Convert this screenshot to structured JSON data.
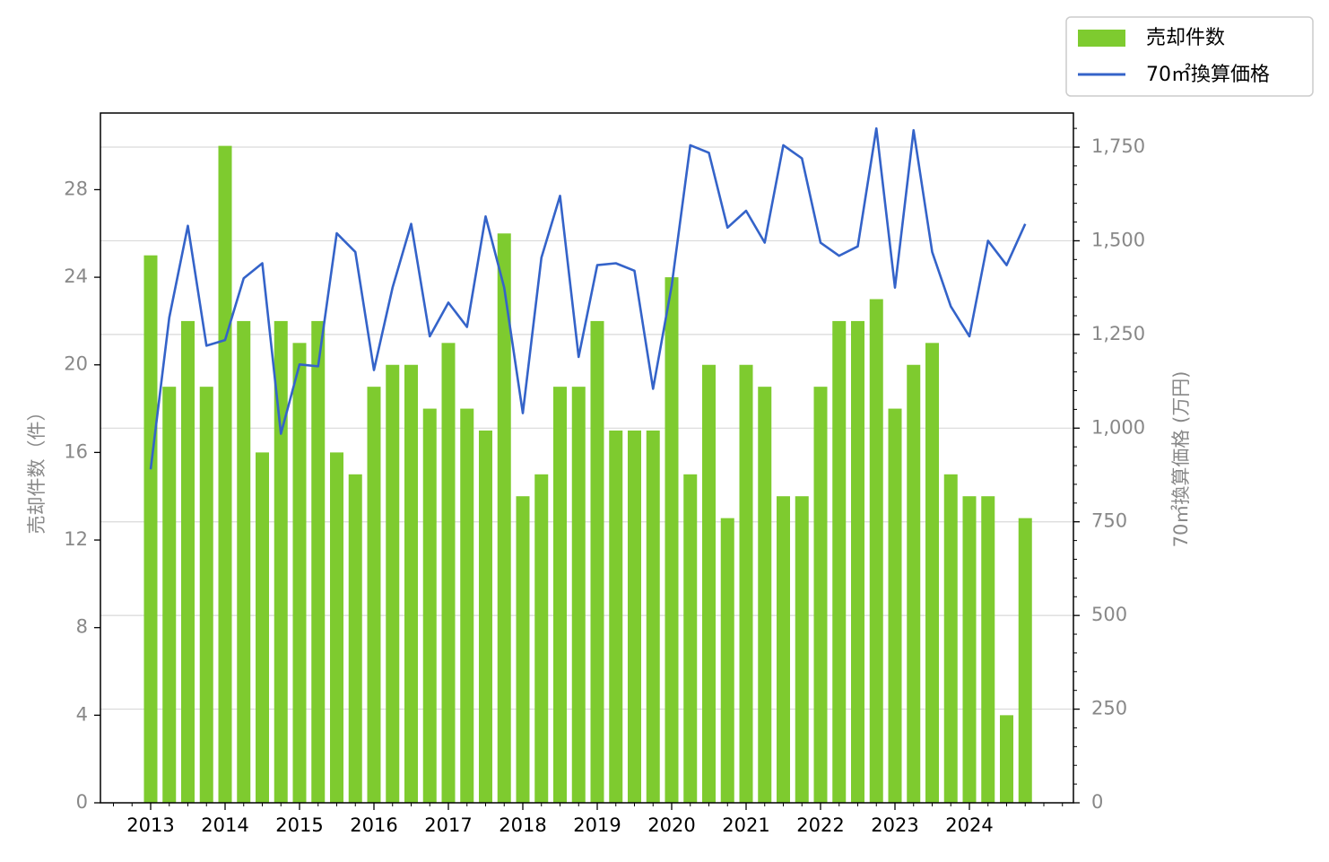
{
  "chart_data": {
    "type": "bar+line",
    "x_tick_labels": [
      "2013",
      "2014",
      "2015",
      "2016",
      "2017",
      "2018",
      "2019",
      "2020",
      "2021",
      "2022",
      "2023",
      "2024"
    ],
    "ylabel_left": "売却件数（件）",
    "ylabel_right": "70㎡換算価格 (万円)",
    "ylim_left": [
      0,
      31.5
    ],
    "ylim_right": [
      0,
      1841
    ],
    "yticks_left": [
      0,
      4,
      8,
      12,
      16,
      20,
      24,
      28
    ],
    "yticks_right": [
      0,
      250,
      500,
      750,
      1000,
      1250,
      1500,
      1750
    ],
    "yticks_right_labels": [
      "0",
      "250",
      "500",
      "750",
      "1,000",
      "1,250",
      "1,500",
      "1,750"
    ],
    "grid": "horizontal (right axis)",
    "legend_position": "top-right",
    "series": [
      {
        "name": "売却件数",
        "type": "bar",
        "axis": "left",
        "color": "#7ecb2f",
        "values": [
          25,
          19,
          22,
          19,
          30,
          22,
          16,
          22,
          21,
          22,
          16,
          15,
          19,
          20,
          20,
          18,
          21,
          18,
          17,
          26,
          14,
          15,
          19,
          19,
          22,
          17,
          17,
          17,
          24,
          15,
          20,
          13,
          20,
          19,
          14,
          14,
          19,
          22,
          22,
          23,
          18,
          20,
          21,
          15,
          14,
          14,
          4,
          13
        ]
      },
      {
        "name": "70㎡換算価格",
        "type": "line",
        "axis": "right",
        "color": "#3463c9",
        "values": [
          890,
          1295,
          1540,
          1220,
          1235,
          1400,
          1440,
          985,
          1170,
          1165,
          1520,
          1470,
          1155,
          1375,
          1545,
          1245,
          1335,
          1270,
          1565,
          1375,
          1040,
          1455,
          1620,
          1190,
          1435,
          1440,
          1420,
          1105,
          1380,
          1755,
          1735,
          1535,
          1580,
          1495,
          1755,
          1720,
          1495,
          1460,
          1485,
          1800,
          1375,
          1795,
          1470,
          1325,
          1245,
          1500,
          1435,
          1545
        ]
      }
    ]
  }
}
